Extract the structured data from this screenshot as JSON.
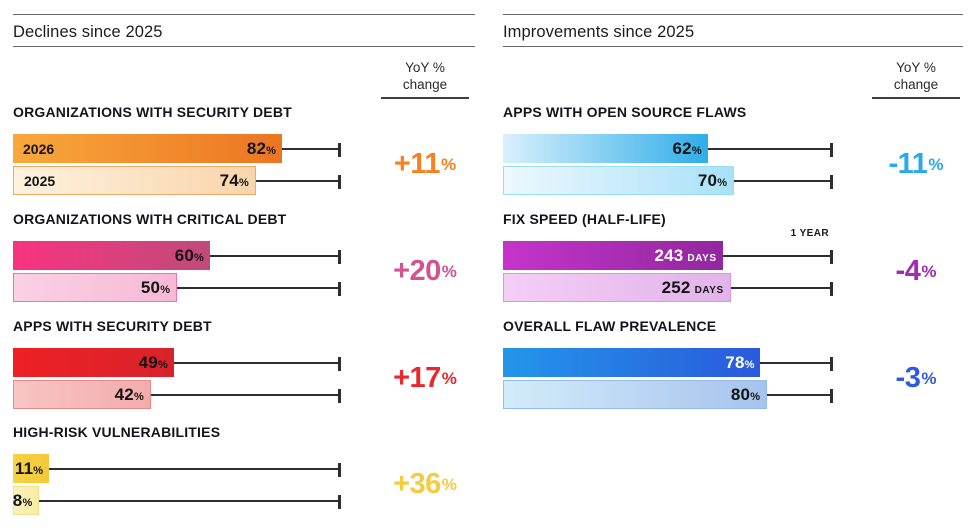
{
  "chart_data": [
    {
      "type": "bar",
      "orientation": "horizontal",
      "section_title": "Declines since 2025",
      "yoy_header": "YoY % change",
      "yoy_header_line1": "YoY %",
      "yoy_header_line2": "change",
      "value_axis": {
        "max": 100,
        "unit": "%",
        "whisker_marks_full_scale": true
      },
      "groups": [
        {
          "title": "ORGANIZATIONS WITH SECURITY DEBT",
          "scale_max": 100,
          "yoy": {
            "num": "+11",
            "unit": "%",
            "color": "#F5821F"
          },
          "rows": [
            {
              "label": "2026",
              "num": "82",
              "unit": "%",
              "value": 82,
              "grad": [
                "#F9A83C",
                "#EC7522"
              ],
              "border": null,
              "text_color": "#141414"
            },
            {
              "label": "2025",
              "num": "74",
              "unit": "%",
              "value": 74,
              "grad": [
                "#FDF2DE",
                "#F9D5AB"
              ],
              "border": "#F1A763",
              "text_color": "#141414"
            }
          ]
        },
        {
          "title": "ORGANIZATIONS WITH CRITICAL DEBT",
          "scale_max": 100,
          "yoy": {
            "num": "+20",
            "unit": "%",
            "color": "#D2548E"
          },
          "rows": [
            {
              "label": null,
              "num": "60",
              "unit": "%",
              "value": 60,
              "grad": [
                "#F83380",
                "#C04B79"
              ],
              "border": null,
              "text_color": "#141414"
            },
            {
              "label": null,
              "num": "50",
              "unit": "%",
              "value": 50,
              "grad": [
                "#FBD1E4",
                "#F6B9D6"
              ],
              "border": "#EF74AA",
              "text_color": "#141414"
            }
          ]
        },
        {
          "title": "APPS WITH SECURITY DEBT",
          "scale_max": 100,
          "yoy": {
            "num": "+17",
            "unit": "%",
            "color": "#E8282D"
          },
          "rows": [
            {
              "label": null,
              "num": "49",
              "unit": "%",
              "value": 49,
              "grad": [
                "#EE2024",
                "#D8232B"
              ],
              "border": null,
              "text_color": "#141414"
            },
            {
              "label": null,
              "num": "42",
              "unit": "%",
              "value": 42,
              "grad": [
                "#F8C5C4",
                "#F3ACAC"
              ],
              "border": "#E98A8A",
              "text_color": "#141414"
            }
          ]
        },
        {
          "title": "HIGH-RISK VULNERABILITIES",
          "scale_max": 100,
          "yoy": {
            "num": "+36",
            "unit": "%",
            "color": "#F7CB3F"
          },
          "rows": [
            {
              "label": null,
              "num": "11",
              "unit": "%",
              "value": 11,
              "grad": [
                "#F7D243",
                "#F2C93A"
              ],
              "border": null,
              "text_color": "#141414"
            },
            {
              "label": null,
              "num": "8",
              "unit": "%",
              "value": 8,
              "grad": [
                "#FBF2BC",
                "#F8ECA6"
              ],
              "border": "#F3DF87",
              "text_color": "#141414"
            }
          ]
        }
      ]
    },
    {
      "type": "bar",
      "orientation": "horizontal",
      "section_title": "Improvements since 2025",
      "yoy_header": "YoY % change",
      "yoy_header_line1": "YoY %",
      "yoy_header_line2": "change",
      "value_axis": {
        "max": 100,
        "unit": "%",
        "whisker_marks_full_scale": true
      },
      "groups": [
        {
          "title": "APPS WITH OPEN SOURCE FLAWS",
          "scale_max": 100,
          "yoy": {
            "num": "-11",
            "unit": "%",
            "color": "#29A9EC"
          },
          "rows": [
            {
              "label": null,
              "num": "62",
              "unit": "%",
              "value": 62,
              "grad": [
                "#D9F0FC",
                "#2FADE9"
              ],
              "border": null,
              "text_color": "#141414"
            },
            {
              "label": null,
              "num": "70",
              "unit": "%",
              "value": 70,
              "grad": [
                "#EDF8FE",
                "#A8E1F8"
              ],
              "border": "#9ADDF7",
              "text_color": "#141414"
            }
          ]
        },
        {
          "title": "FIX SPEED (HALF-LIFE)",
          "scale_max": 365,
          "yoy": {
            "num": "-4",
            "unit": "%",
            "color": "#A02CB5"
          },
          "rows": [
            {
              "label": null,
              "num": "243",
              "unit": "DAYS",
              "value": 243,
              "grad": [
                "#C534CB",
                "#91289E"
              ],
              "border": null,
              "text_color": "#FFFFFF",
              "note": "1 YEAR"
            },
            {
              "label": null,
              "num": "252",
              "unit": "DAYS",
              "value": 252,
              "grad": [
                "#F4CEF5",
                "#E2B3EA"
              ],
              "border": "#DD96DC",
              "text_color": "#141414"
            }
          ]
        },
        {
          "title": "OVERALL FLAW PREVALENCE",
          "scale_max": 100,
          "yoy": {
            "num": "-3",
            "unit": "%",
            "color": "#2C5CD9"
          },
          "rows": [
            {
              "label": null,
              "num": "78",
              "unit": "%",
              "value": 78,
              "grad": [
                "#2396EA",
                "#2A59DB"
              ],
              "border": null,
              "text_color": "#FFFFFF"
            },
            {
              "label": null,
              "num": "80",
              "unit": "%",
              "value": 80,
              "grad": [
                "#D3ECFA",
                "#A5C3ED"
              ],
              "border": "#97BBE9",
              "text_color": "#141414"
            }
          ]
        }
      ]
    }
  ]
}
